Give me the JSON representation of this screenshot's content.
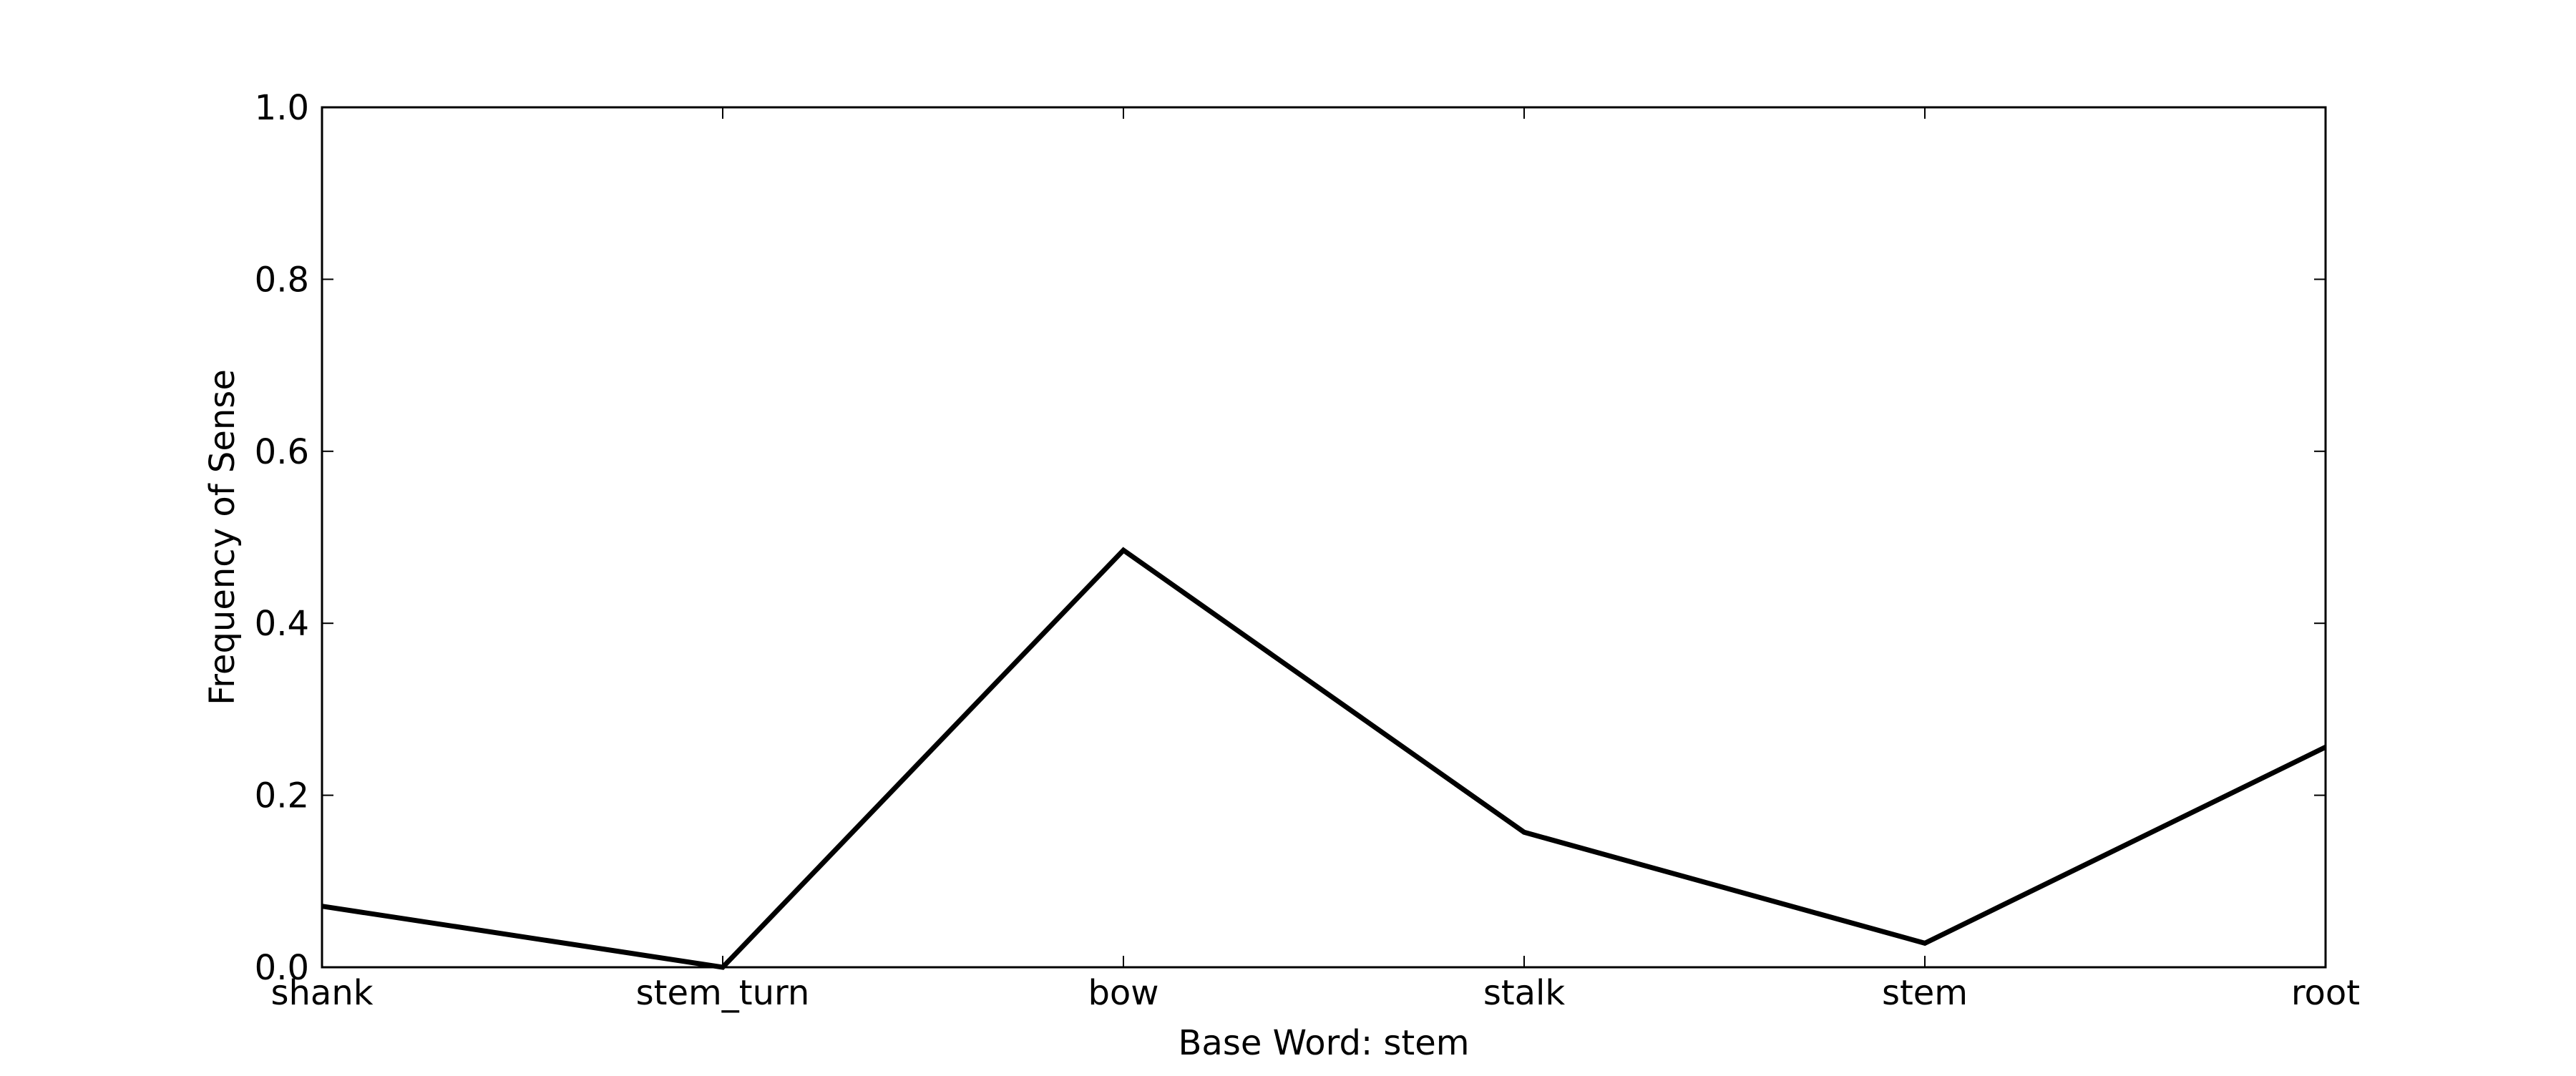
{
  "chart_data": {
    "type": "line",
    "categories": [
      "shank",
      "stem_turn",
      "bow",
      "stalk",
      "stem",
      "root"
    ],
    "series": [
      {
        "values": [
          0.071,
          0.0,
          0.485,
          0.157,
          0.028,
          0.256
        ],
        "color": "#000000"
      }
    ],
    "xlabel": "Base Word: stem",
    "ylabel": "Frequency of Sense",
    "ylim": [
      0.0,
      1.0
    ],
    "yticks": [
      "0.0",
      "0.2",
      "0.4",
      "0.6",
      "0.8",
      "1.0"
    ],
    "grid": false
  }
}
